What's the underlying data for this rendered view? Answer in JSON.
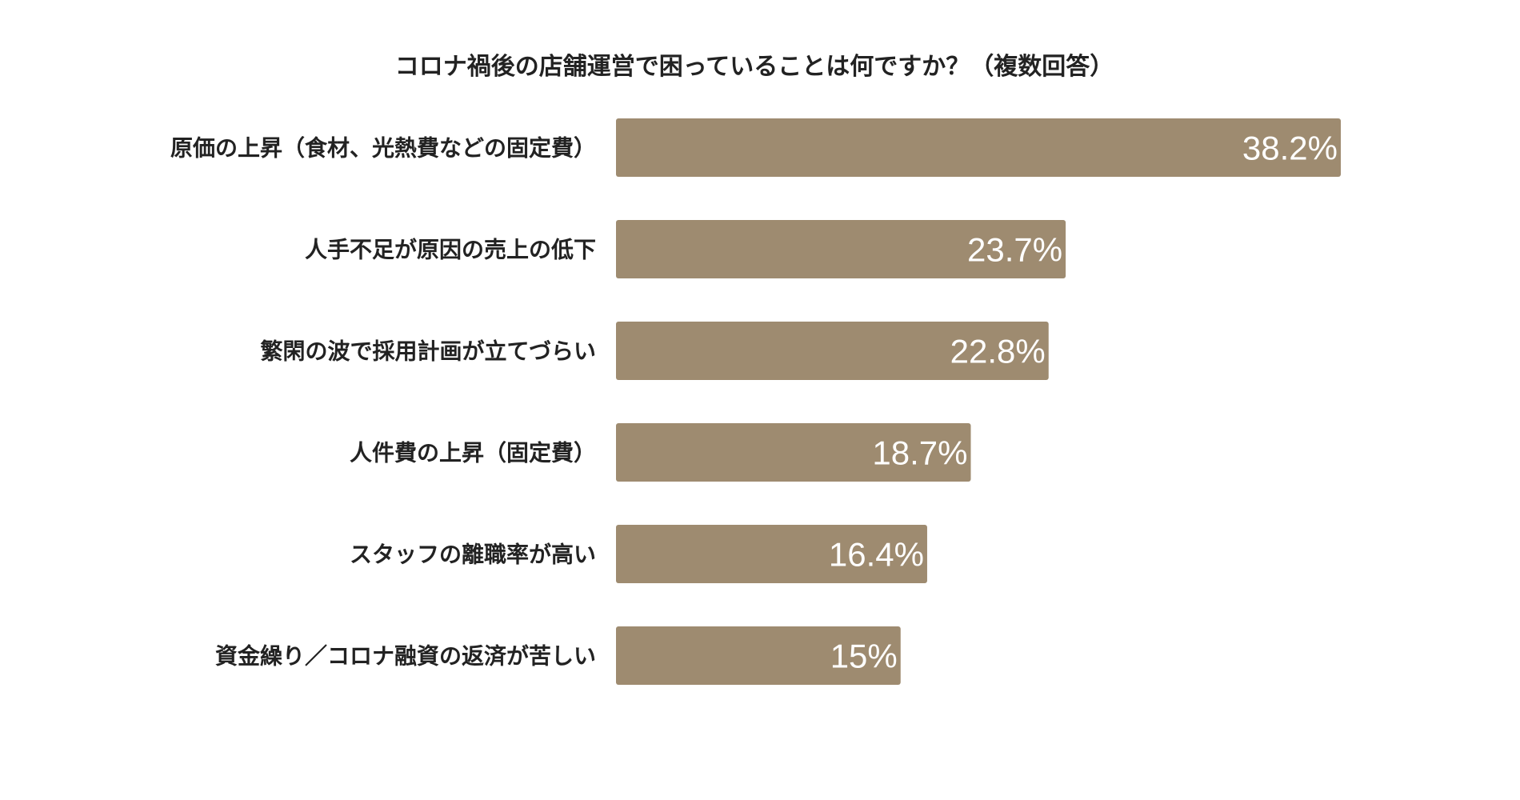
{
  "chart_data": {
    "type": "bar",
    "orientation": "horizontal",
    "title": "コロナ禍後の店舗運営で困っていることは何ですか？（複数回答）",
    "categories": [
      "原価の上昇（食材、光熱費などの固定費）",
      "人手不足が原因の売上の低下",
      "繁閑の波で採用計画が立てづらい",
      "人件費の上昇（固定費）",
      "スタッフの離職率が高い",
      "資金繰り／コロナ融資の返済が苦しい"
    ],
    "values": [
      38.2,
      23.7,
      22.8,
      18.7,
      16.4,
      15
    ],
    "data_labels": [
      "38.2%",
      "23.7%",
      "22.8%",
      "18.7%",
      "16.4%",
      "15%"
    ],
    "unit": "%",
    "xlim": [
      0,
      38.2
    ],
    "bar_color": "#9e8b70",
    "label_color": "#ffffff",
    "grid": false,
    "legend": "none"
  }
}
